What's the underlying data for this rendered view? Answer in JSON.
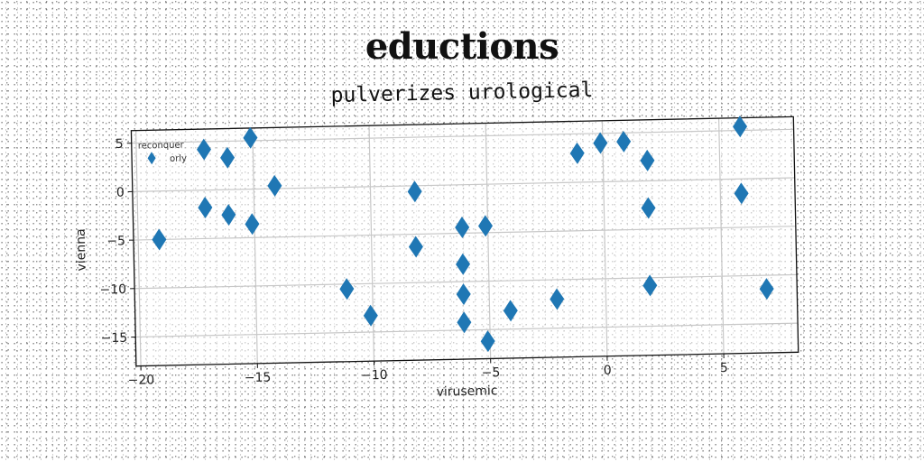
{
  "chart_data": {
    "type": "scatter",
    "title": "eductions",
    "subtitle": "pulverizes urological",
    "xlabel": "virusemic",
    "ylabel": "vienna",
    "xlim": [
      -20.2,
      8.2
    ],
    "ylim": [
      -18,
      6.3
    ],
    "xticks": [
      -20,
      -15,
      -10,
      -5,
      0,
      5
    ],
    "xtick_labels": [
      "−20",
      "−15",
      "−10",
      "−5",
      "0",
      "5"
    ],
    "yticks": [
      5,
      0,
      -5,
      -10,
      -15
    ],
    "ytick_labels": [
      "5",
      "0",
      "−5",
      "−10",
      "−15"
    ],
    "grid": true,
    "legend": {
      "title": "reconquer",
      "position": "top-left",
      "entries": [
        "orly"
      ]
    },
    "series": [
      {
        "name": "orly",
        "color": "#1f77b4",
        "marker": "thin_diamond",
        "points": [
          [
            -19.1,
            -5.0
          ],
          [
            -17.1,
            4.2
          ],
          [
            -17.1,
            -1.8
          ],
          [
            -16.1,
            3.3
          ],
          [
            -16.1,
            -2.6
          ],
          [
            -15.1,
            5.3
          ],
          [
            -15.1,
            -3.6
          ],
          [
            -14.1,
            0.3
          ],
          [
            -11.1,
            -10.5
          ],
          [
            -10.1,
            -13.3
          ],
          [
            -8.1,
            -0.6
          ],
          [
            -8.1,
            -6.3
          ],
          [
            -6.1,
            -4.4
          ],
          [
            -6.1,
            -8.2
          ],
          [
            -6.1,
            -11.3
          ],
          [
            -6.1,
            -14.2
          ],
          [
            -5.1,
            -4.3
          ],
          [
            -5.1,
            -16.2
          ],
          [
            -4.1,
            -13.1
          ],
          [
            -2.1,
            -12.0
          ],
          [
            -1.1,
            3.0
          ],
          [
            -0.1,
            4.0
          ],
          [
            0.9,
            4.1
          ],
          [
            1.9,
            2.1
          ],
          [
            1.9,
            -2.8
          ],
          [
            1.9,
            -10.8
          ],
          [
            5.9,
            5.4
          ],
          [
            5.9,
            -1.5
          ],
          [
            6.9,
            -11.4
          ]
        ]
      }
    ]
  }
}
